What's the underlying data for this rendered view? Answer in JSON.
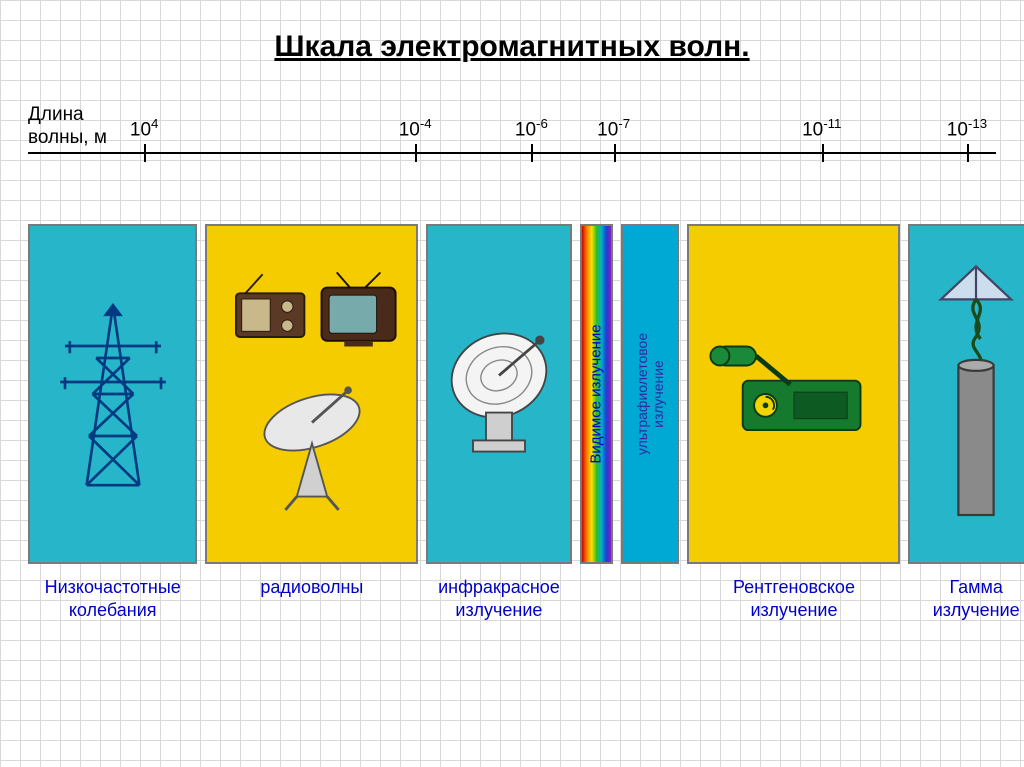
{
  "title": "Шкала электромагнитных волн.",
  "title_fontsize": 30,
  "axis": {
    "label_line1": "Длина",
    "label_line2": "волны, м",
    "label_fontsize": 19,
    "line_color": "#000000",
    "ticks": [
      {
        "pos_pct": 12.0,
        "base": "10",
        "exp": "4"
      },
      {
        "pos_pct": 40.0,
        "base": "10",
        "exp": "-4"
      },
      {
        "pos_pct": 52.0,
        "base": "10",
        "exp": "-6"
      },
      {
        "pos_pct": 60.5,
        "base": "10",
        "exp": "-7"
      },
      {
        "pos_pct": 82.0,
        "base": "10",
        "exp": "-11"
      },
      {
        "pos_pct": 97.0,
        "base": "10",
        "exp": "-13"
      }
    ],
    "tick_fontsize": 19
  },
  "bands": [
    {
      "id": "low-freq",
      "width_pct": 17.5,
      "bg_color": "#27b5c9",
      "icon": "tower",
      "caption_line1": "Низкочастотные",
      "caption_line2": "колебания"
    },
    {
      "id": "radio",
      "width_pct": 22.0,
      "bg_color": "#f5cc00",
      "icon": "radio",
      "caption_line1": "радиоволны",
      "caption_line2": ""
    },
    {
      "id": "infrared",
      "width_pct": 15.0,
      "bg_color": "#27b5c9",
      "icon": "dish-ir",
      "caption_line1": "инфракрасное",
      "caption_line2": "излучение"
    },
    {
      "id": "visible",
      "width_pct": 3.5,
      "bg_color": "rainbow",
      "vertical_label": "Видимое излучение",
      "vertical_label_color": "#0000c8",
      "vertical_label_fontsize": 15,
      "caption_line1": "",
      "caption_line2": ""
    },
    {
      "id": "uv",
      "width_pct": 6.0,
      "bg_color": "#00a9d4",
      "vertical_label": "ультрафиолетовое\nизлучение",
      "vertical_label_color": "#2a2aa0",
      "vertical_label_fontsize": 14,
      "caption_line1": "",
      "caption_line2": ""
    },
    {
      "id": "xray",
      "width_pct": 22.0,
      "bg_color": "#f5cc00",
      "icon": "xray",
      "caption_line1": "Рентгеновское",
      "caption_line2": "излучение"
    },
    {
      "id": "gamma",
      "width_pct": 14.0,
      "bg_color": "#27b5c9",
      "icon": "rod",
      "caption_line1": "Гамма",
      "caption_line2": "излучение"
    }
  ],
  "caption_color": "#0000c8",
  "caption_fontsize": 18,
  "band_height": 340,
  "band_border_color": "#7a7a7a",
  "grid_color": "#d8d8d8",
  "background_color": "#ffffff"
}
